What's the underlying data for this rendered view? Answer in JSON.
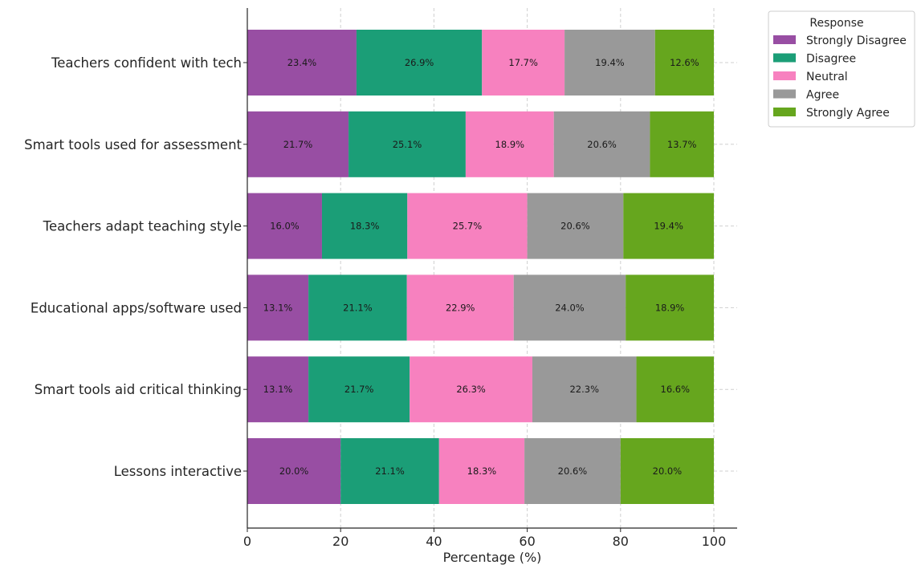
{
  "chart_data": {
    "type": "bar",
    "orientation": "horizontal",
    "stacked": true,
    "xlabel": "Percentage (%)",
    "xlim": [
      0,
      100
    ],
    "xticks": [
      0,
      20,
      40,
      60,
      80,
      100
    ],
    "grid": true,
    "legend_title": "Response",
    "legend_position": "top-right outside",
    "categories": [
      "Teachers confident with tech",
      "Smart tools used for assessment",
      "Teachers adapt teaching style",
      "Educational apps/software used",
      "Smart tools aid critical thinking",
      "Lessons interactive"
    ],
    "series": [
      {
        "name": "Strongly Disagree",
        "color": "#984ea3",
        "values": [
          23.4,
          21.7,
          16.0,
          13.1,
          13.1,
          20.0
        ]
      },
      {
        "name": "Disagree",
        "color": "#1b9e77",
        "values": [
          26.9,
          25.1,
          18.3,
          21.1,
          21.7,
          21.1
        ]
      },
      {
        "name": "Neutral",
        "color": "#f781bf",
        "values": [
          17.7,
          18.9,
          25.7,
          22.9,
          26.3,
          18.3
        ]
      },
      {
        "name": "Agree",
        "color": "#999999",
        "values": [
          19.4,
          20.6,
          20.6,
          24.0,
          22.3,
          20.6
        ]
      },
      {
        "name": "Strongly Agree",
        "color": "#66a61e",
        "values": [
          12.6,
          13.7,
          19.4,
          18.9,
          16.6,
          20.0
        ]
      }
    ]
  }
}
